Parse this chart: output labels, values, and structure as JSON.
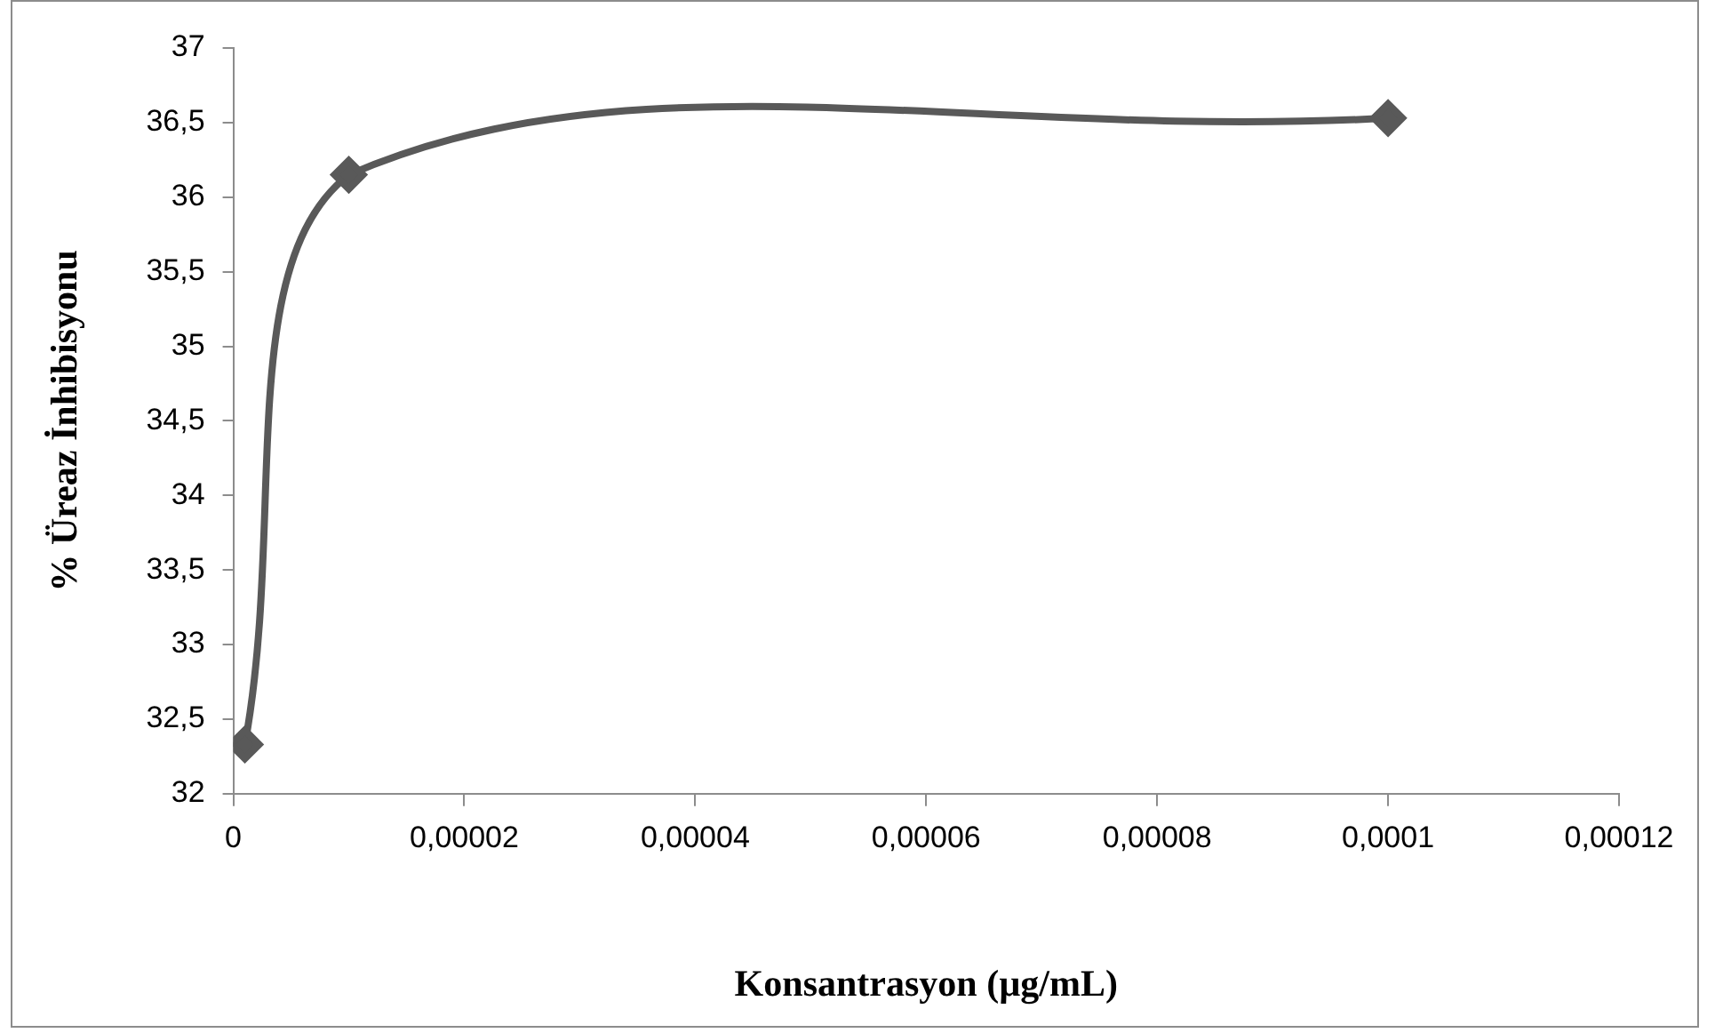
{
  "chart_data": {
    "type": "line",
    "xlabel": "Konsantrasyon (µg/mL)",
    "ylabel": "% Üreaz İnhibisyonu",
    "x": [
      1e-06,
      1e-05,
      0.0001
    ],
    "series": [
      {
        "color": "#595959",
        "values": [
          32.33,
          36.15,
          36.53
        ]
      }
    ],
    "marker": "diamond",
    "grid": false,
    "legend": false,
    "xlim": [
      0,
      0.00012
    ],
    "xticks": [
      0,
      {
        "value": 2e-05,
        "label": "0,00002"
      },
      {
        "value": 4e-05,
        "label": "0,00004"
      },
      {
        "value": 6e-05,
        "label": "0,00006"
      },
      {
        "value": 8e-05,
        "label": "0,00008"
      },
      {
        "value": 0.0001,
        "label": "0,0001"
      },
      {
        "value": 0.00012,
        "label": "0,00012"
      }
    ],
    "ylim": [
      32,
      37
    ],
    "yticks": [
      32,
      {
        "value": 32.5,
        "label": "32,5"
      },
      33,
      {
        "value": 33.5,
        "label": "33,5"
      },
      34,
      {
        "value": 34.5,
        "label": "34,5"
      },
      35,
      {
        "value": 35.5,
        "label": "35,5"
      },
      36,
      {
        "value": 36.5,
        "label": "36,5"
      },
      37
    ]
  }
}
